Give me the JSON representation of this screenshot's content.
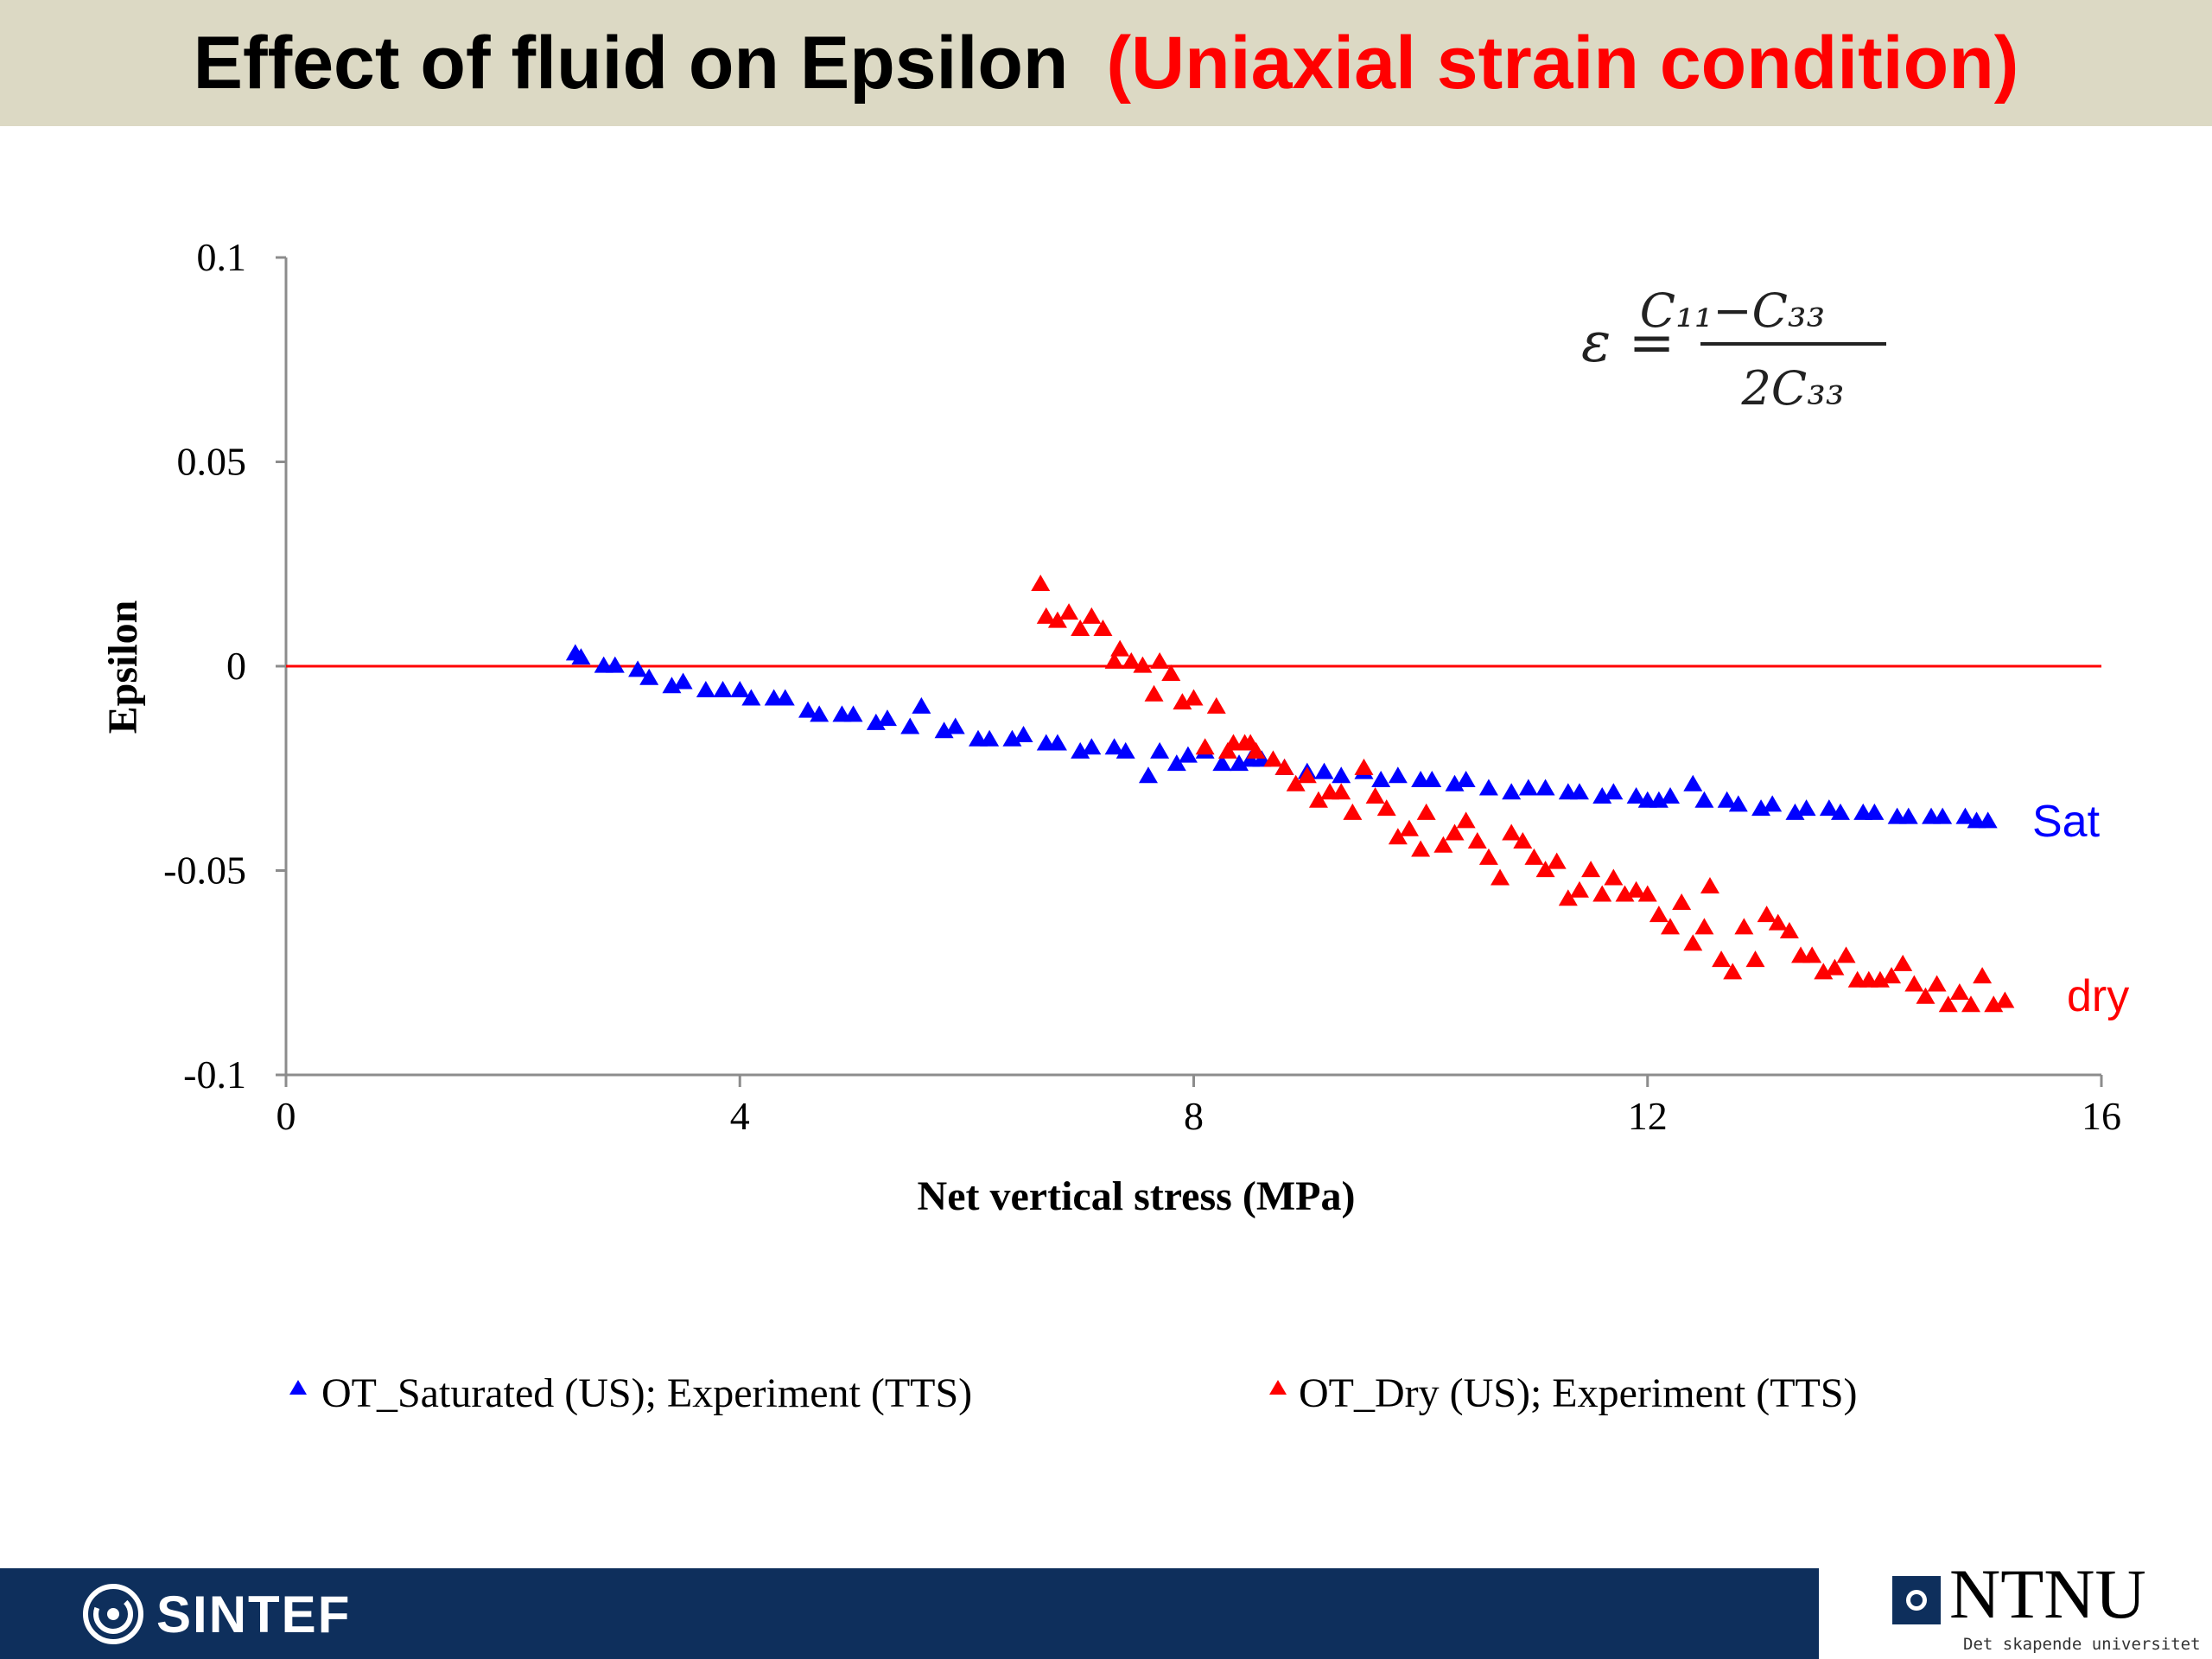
{
  "slide": {
    "title_main": "Effect of fluid on Epsilon",
    "title_sub": "(Uniaxial strain condition)",
    "formula_lhs": "ε =",
    "formula_numerator": "C₁₁−C₃₃",
    "formula_denominator": "2C₃₃",
    "label_sat": "Sat",
    "label_dry": "dry",
    "logo_left": "SINTEF",
    "logo_right": "NTNU",
    "logo_right_tagline": "Det skapende universitet"
  },
  "colors": {
    "header_bg": "#dcd9c4",
    "title_sub": "#ff0000",
    "saturated": "#0000ff",
    "dry": "#ff0000",
    "zero_line": "#ff0000",
    "footer": "#0e2f5c"
  },
  "chart_data": {
    "type": "scatter",
    "title": "",
    "xlabel": "Net vertical stress (MPa)",
    "ylabel": "Epsilon",
    "xlim": [
      0,
      16
    ],
    "ylim": [
      -0.1,
      0.1
    ],
    "xticks": [
      "0",
      "4",
      "8",
      "12",
      "16"
    ],
    "yticks": [
      "0.1",
      "0.05",
      "0",
      "-0.05",
      "-0.1"
    ],
    "xtick_values": [
      0,
      4,
      8,
      12,
      16
    ],
    "ytick_values": [
      0.1,
      0.05,
      0,
      -0.05,
      -0.1
    ],
    "grid": false,
    "reference_line_y": 0,
    "legend_position": "bottom",
    "series": [
      {
        "name": "OT_Saturated (US); Experiment (TTS)",
        "marker": "triangle",
        "x": [
          2.55,
          2.6,
          2.8,
          2.9,
          3.1,
          3.2,
          3.4,
          3.5,
          3.7,
          3.85,
          4.0,
          4.1,
          4.3,
          4.4,
          4.6,
          4.7,
          4.9,
          5.0,
          5.2,
          5.3,
          5.5,
          5.6,
          5.8,
          5.9,
          6.1,
          6.2,
          6.4,
          6.5,
          6.7,
          6.8,
          7.0,
          7.1,
          7.3,
          7.4,
          7.6,
          7.7,
          7.85,
          7.95,
          8.1,
          8.25,
          8.4,
          8.5,
          8.6,
          8.8,
          9.0,
          9.15,
          9.3,
          9.5,
          9.65,
          9.8,
          10.0,
          10.1,
          10.3,
          10.4,
          10.6,
          10.8,
          10.95,
          11.1,
          11.3,
          11.4,
          11.6,
          11.7,
          11.9,
          12.0,
          12.1,
          12.2,
          12.4,
          12.5,
          12.7,
          12.8,
          13.0,
          13.1,
          13.3,
          13.4,
          13.6,
          13.7,
          13.9,
          14.0,
          14.2,
          14.3,
          14.5,
          14.6,
          14.8,
          14.9,
          15.0
        ],
        "y": [
          0.003,
          0.002,
          0.0,
          0.0,
          -0.001,
          -0.003,
          -0.005,
          -0.004,
          -0.006,
          -0.006,
          -0.006,
          -0.008,
          -0.008,
          -0.008,
          -0.011,
          -0.012,
          -0.012,
          -0.012,
          -0.014,
          -0.013,
          -0.015,
          -0.01,
          -0.016,
          -0.015,
          -0.018,
          -0.018,
          -0.018,
          -0.017,
          -0.019,
          -0.019,
          -0.021,
          -0.02,
          -0.02,
          -0.021,
          -0.027,
          -0.021,
          -0.024,
          -0.022,
          -0.021,
          -0.024,
          -0.024,
          -0.023,
          -0.023,
          -0.025,
          -0.026,
          -0.026,
          -0.027,
          -0.026,
          -0.028,
          -0.027,
          -0.028,
          -0.028,
          -0.029,
          -0.028,
          -0.03,
          -0.031,
          -0.03,
          -0.03,
          -0.031,
          -0.031,
          -0.032,
          -0.031,
          -0.032,
          -0.033,
          -0.033,
          -0.032,
          -0.029,
          -0.033,
          -0.033,
          -0.034,
          -0.035,
          -0.034,
          -0.036,
          -0.035,
          -0.035,
          -0.036,
          -0.036,
          -0.036,
          -0.037,
          -0.037,
          -0.037,
          -0.037,
          -0.037,
          -0.038,
          -0.038
        ]
      },
      {
        "name": "OT_Dry (US); Experiment (TTS)",
        "marker": "triangle",
        "x": [
          6.65,
          6.7,
          6.8,
          6.9,
          7.0,
          7.1,
          7.2,
          7.3,
          7.35,
          7.45,
          7.55,
          7.65,
          7.7,
          7.8,
          7.9,
          8.0,
          8.1,
          8.2,
          8.3,
          8.35,
          8.45,
          8.5,
          8.55,
          8.7,
          8.8,
          8.9,
          9.0,
          9.1,
          9.2,
          9.3,
          9.4,
          9.5,
          9.6,
          9.7,
          9.8,
          9.9,
          10.0,
          10.05,
          10.2,
          10.3,
          10.4,
          10.5,
          10.6,
          10.7,
          10.8,
          10.9,
          11.0,
          11.1,
          11.2,
          11.3,
          11.4,
          11.5,
          11.6,
          11.7,
          11.8,
          11.9,
          12.0,
          12.1,
          12.2,
          12.3,
          12.4,
          12.5,
          12.55,
          12.65,
          12.75,
          12.85,
          12.95,
          13.05,
          13.15,
          13.25,
          13.35,
          13.45,
          13.55,
          13.65,
          13.75,
          13.85,
          13.95,
          14.05,
          14.15,
          14.25,
          14.35,
          14.45,
          14.55,
          14.65,
          14.75,
          14.85,
          14.95,
          15.05,
          15.15
        ],
        "y": [
          0.02,
          0.012,
          0.011,
          0.013,
          0.009,
          0.012,
          0.009,
          0.001,
          0.004,
          0.001,
          0.0,
          -0.007,
          0.001,
          -0.002,
          -0.009,
          -0.008,
          -0.02,
          -0.01,
          -0.021,
          -0.019,
          -0.019,
          -0.019,
          -0.021,
          -0.023,
          -0.025,
          -0.029,
          -0.027,
          -0.033,
          -0.031,
          -0.031,
          -0.036,
          -0.025,
          -0.032,
          -0.035,
          -0.042,
          -0.04,
          -0.045,
          -0.036,
          -0.044,
          -0.041,
          -0.038,
          -0.043,
          -0.047,
          -0.052,
          -0.041,
          -0.043,
          -0.047,
          -0.05,
          -0.048,
          -0.057,
          -0.055,
          -0.05,
          -0.056,
          -0.052,
          -0.056,
          -0.055,
          -0.056,
          -0.061,
          -0.064,
          -0.058,
          -0.068,
          -0.064,
          -0.054,
          -0.072,
          -0.075,
          -0.064,
          -0.072,
          -0.061,
          -0.063,
          -0.065,
          -0.071,
          -0.071,
          -0.075,
          -0.074,
          -0.071,
          -0.077,
          -0.077,
          -0.077,
          -0.076,
          -0.073,
          -0.078,
          -0.081,
          -0.078,
          -0.083,
          -0.08,
          -0.083,
          -0.076,
          -0.083,
          -0.082
        ]
      }
    ]
  }
}
